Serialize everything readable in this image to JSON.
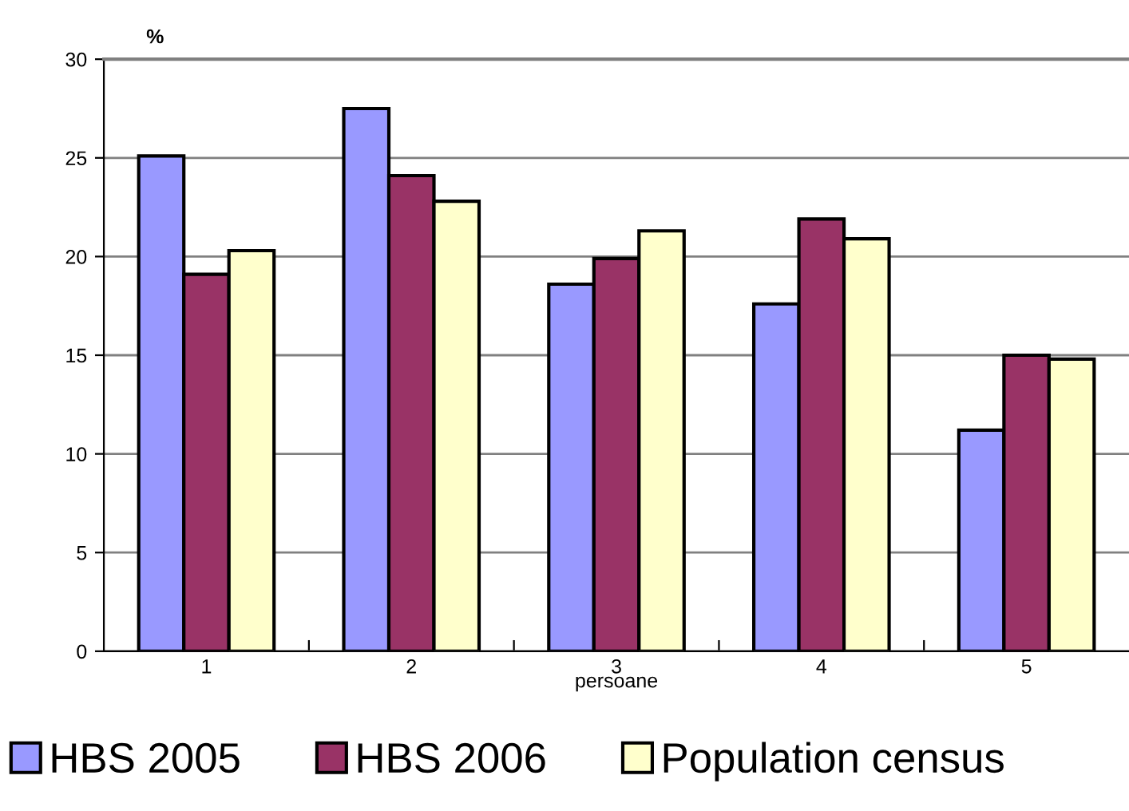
{
  "chart_data": {
    "type": "bar",
    "ylabel": "%",
    "xlabel": "persoane",
    "categories": [
      "1",
      "2",
      "3",
      "4",
      "5"
    ],
    "series": [
      {
        "name": "HBS 2005",
        "color": "#9999ff",
        "values": [
          25.1,
          27.5,
          18.6,
          17.6,
          11.2
        ]
      },
      {
        "name": "HBS 2006",
        "color": "#993366",
        "values": [
          19.1,
          24.1,
          19.9,
          21.9,
          15.0
        ]
      },
      {
        "name": "Population census",
        "color": "#ffffcc",
        "values": [
          20.3,
          22.8,
          21.3,
          20.9,
          14.8
        ]
      }
    ],
    "ylim": [
      0,
      30
    ],
    "yticks": [
      0,
      5,
      10,
      15,
      20,
      25,
      30
    ],
    "grid": "y",
    "legend": "bottom"
  }
}
